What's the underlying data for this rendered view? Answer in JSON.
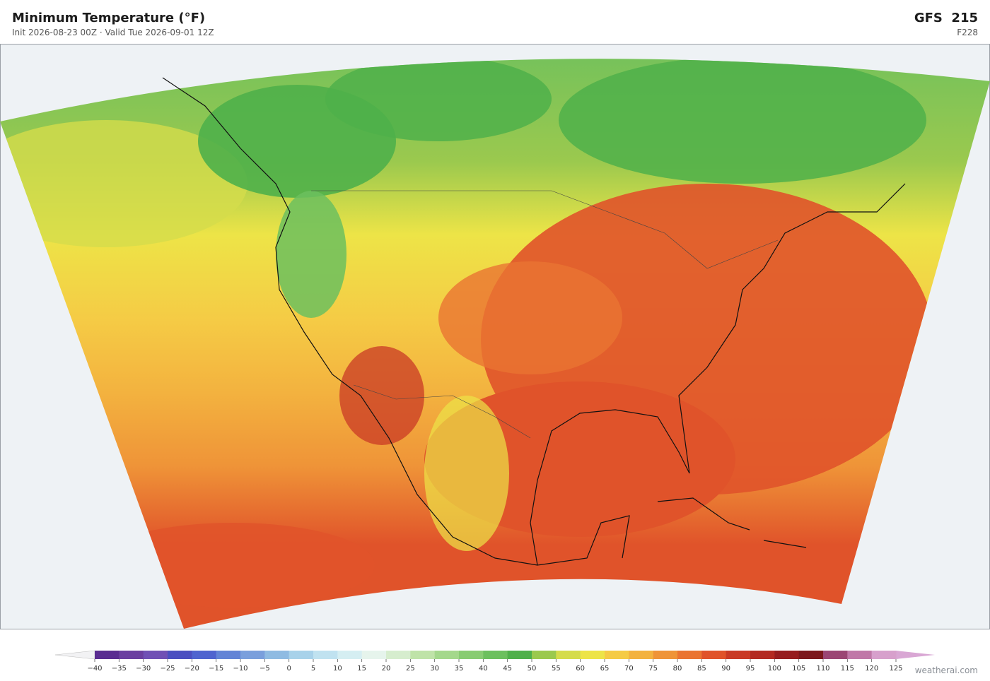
{
  "header": {
    "title": "Minimum Temperature  (°F)",
    "subtitle": "Init 2026-08-23 00Z   ·   Valid Tue 2026-09-01 12Z",
    "model": "GFS  215",
    "forecast_hour": "F228"
  },
  "colorbar": {
    "ticks": [
      {
        "value": -40,
        "label": "−40"
      },
      {
        "value": -35,
        "label": "−35"
      },
      {
        "value": -30,
        "label": "−30"
      },
      {
        "value": -25,
        "label": "−25"
      },
      {
        "value": -20,
        "label": "−20"
      },
      {
        "value": -15,
        "label": "−15"
      },
      {
        "value": -10,
        "label": "−10"
      },
      {
        "value": -5,
        "label": "−5"
      },
      0,
      5,
      10,
      15,
      20,
      25,
      30,
      35,
      40,
      45,
      50,
      55,
      60,
      65,
      70,
      75,
      80,
      85,
      90,
      95,
      100,
      105,
      110,
      115,
      120,
      125
    ],
    "colors": [
      "#5a2d91",
      "#6b3fa0",
      "#7050b5",
      "#4b4fc0",
      "#4f64cf",
      "#6384d6",
      "#7a9fdc",
      "#8fbbe2",
      "#a8d2ea",
      "#c0e2f0",
      "#d5eef2",
      "#e6f4ec",
      "#d6edce",
      "#bfe3a8",
      "#a4d88c",
      "#88cc72",
      "#6cc05e",
      "#4fb04a",
      "#9bc94e",
      "#d5dc4b",
      "#ede447",
      "#f5cb45",
      "#f3b23f",
      "#ef9438",
      "#ea7432",
      "#e0532a",
      "#c93a25",
      "#b32a22",
      "#961d1f",
      "#7c181c",
      "#9b4674",
      "#c078a8",
      "#d7a0cc"
    ],
    "under_color": "#f2f2f4",
    "over_color": "#d9a7d4"
  },
  "watermark": "weatherai.com"
}
